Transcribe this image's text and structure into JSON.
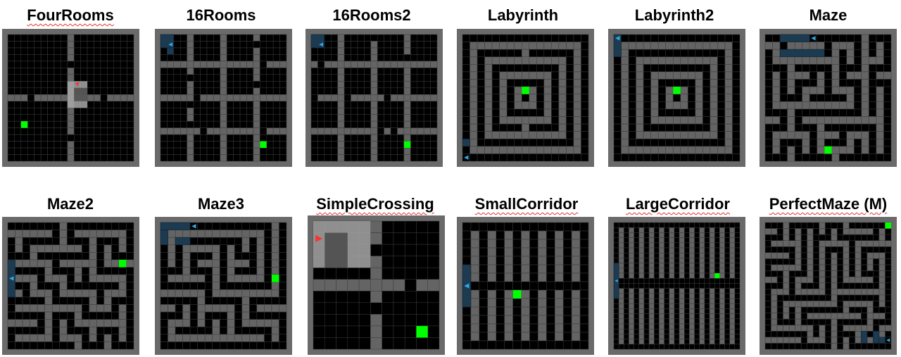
{
  "figure": {
    "colors": {
      "floor": "#000000",
      "wall": "#646464",
      "border": "#6a6a6a",
      "goal": "#00ff00",
      "agent_blue": "#2fa8e6",
      "trail_blue": "#1c3a50",
      "agent_red": "#ff3030",
      "view_light": "#a8a8a8",
      "view_dark": "#4a4a4a"
    },
    "panels": [
      {
        "title": "FourRooms",
        "spellcheck": true
      },
      {
        "title": "16Rooms",
        "spellcheck": false
      },
      {
        "title": "16Rooms2",
        "spellcheck": false
      },
      {
        "title": "Labyrinth",
        "spellcheck": false
      },
      {
        "title": "Labyrinth2",
        "spellcheck": false
      },
      {
        "title": "Maze",
        "spellcheck": false
      },
      {
        "title": "Maze2",
        "spellcheck": false
      },
      {
        "title": "Maze3",
        "spellcheck": false
      },
      {
        "title": "SimpleCrossing",
        "spellcheck": true
      },
      {
        "title": "SmallCorridor",
        "spellcheck": true
      },
      {
        "title": "LargeCorridor",
        "spellcheck": true
      },
      {
        "title": "PerfectMaze (M)",
        "spellcheck": true
      }
    ]
  }
}
